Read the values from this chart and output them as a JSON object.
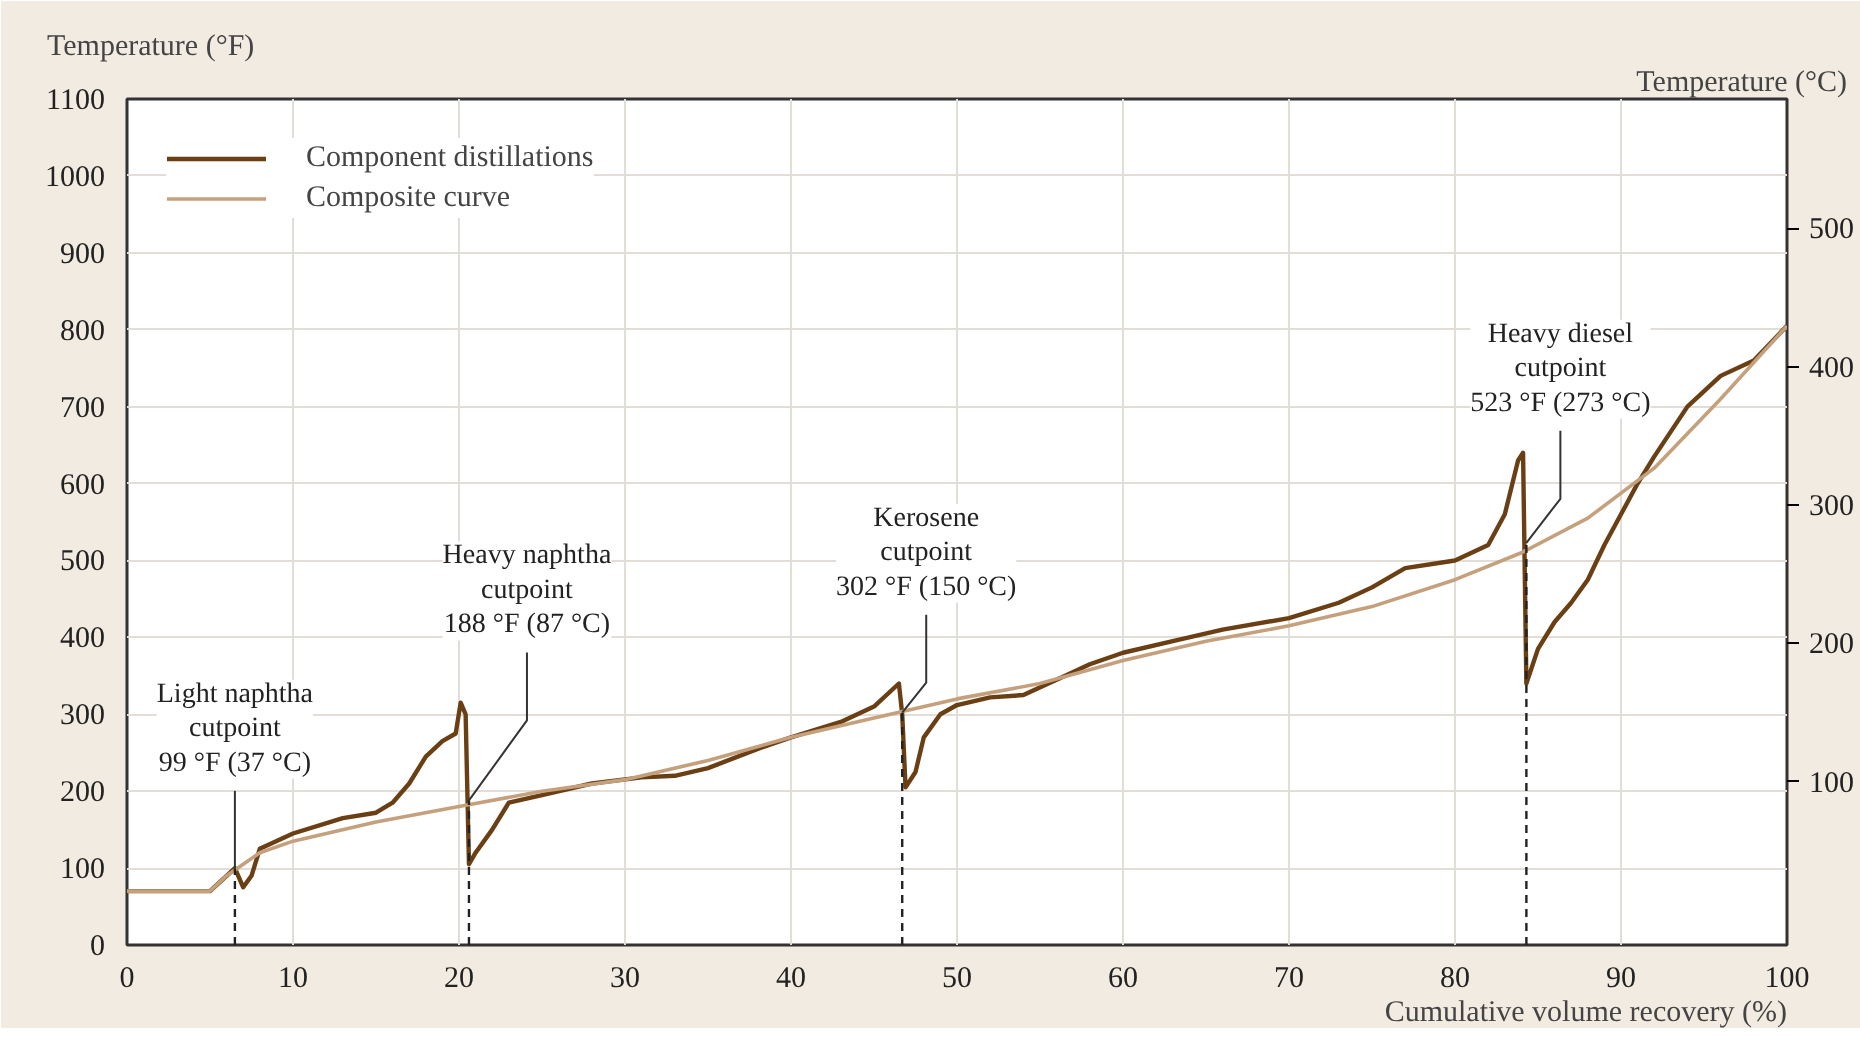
{
  "chart_data": {
    "type": "line",
    "xlabel": "Cumulative volume recovery (%)",
    "ylabel": "Temperature (°F)",
    "y2label": "Temperature (°C)",
    "xlim": [
      0,
      100
    ],
    "xticks": [
      0,
      10,
      20,
      30,
      40,
      50,
      60,
      70,
      80,
      90,
      100
    ],
    "ylim": [
      0,
      1100
    ],
    "yticks": [
      0,
      100,
      200,
      300,
      400,
      500,
      600,
      700,
      800,
      900,
      1000,
      1100
    ],
    "y2lim": [
      -17.8,
      593.3
    ],
    "y2ticks": [
      100,
      200,
      300,
      400,
      500
    ],
    "grid": true,
    "legend": "top left",
    "line_style": "solid",
    "series": [
      {
        "name": "Component distillations",
        "color": "#6b3f14",
        "x": [
          0,
          5,
          6,
          6.5,
          7,
          7.5,
          8,
          10,
          13,
          15,
          16,
          17,
          18,
          19,
          19.8,
          20.1,
          20.4,
          20.6,
          21,
          22,
          23,
          25,
          28,
          31,
          33,
          35,
          38,
          40,
          43,
          45,
          46.5,
          46.7,
          46.9,
          47.5,
          48,
          49,
          50,
          52,
          54,
          56,
          58,
          60,
          63,
          66,
          70,
          73,
          75,
          77,
          80,
          82,
          83,
          83.8,
          84.1,
          84.3,
          85,
          86,
          87,
          88,
          89,
          90,
          91,
          92,
          94,
          96,
          98,
          100
        ],
        "values": [
          70,
          70,
          90,
          100,
          75,
          90,
          125,
          145,
          165,
          172,
          185,
          210,
          245,
          265,
          275,
          315,
          300,
          105,
          120,
          150,
          185,
          195,
          210,
          218,
          220,
          230,
          255,
          270,
          290,
          310,
          340,
          300,
          205,
          225,
          270,
          300,
          312,
          322,
          325,
          345,
          365,
          380,
          395,
          410,
          425,
          445,
          465,
          490,
          500,
          520,
          560,
          630,
          640,
          340,
          385,
          420,
          445,
          475,
          520,
          560,
          600,
          635,
          700,
          740,
          760,
          805
        ]
      },
      {
        "name": "Composite curve",
        "color": "#c4a17c",
        "x": [
          0,
          5,
          6,
          7,
          8,
          10,
          15,
          20,
          25,
          30,
          35,
          40,
          45,
          50,
          55,
          60,
          65,
          70,
          75,
          80,
          84,
          88,
          92,
          96,
          100
        ],
        "values": [
          70,
          70,
          90,
          105,
          120,
          135,
          160,
          180,
          200,
          215,
          240,
          270,
          295,
          320,
          340,
          370,
          395,
          415,
          440,
          475,
          510,
          555,
          620,
          710,
          805
        ]
      }
    ],
    "ref_lines": [
      {
        "axis": "x",
        "value": 6.5,
        "color": "#222222",
        "line_style": "dashed"
      },
      {
        "axis": "x",
        "value": 20.6,
        "color": "#222222",
        "line_style": "dashed"
      },
      {
        "axis": "x",
        "value": 46.7,
        "color": "#222222",
        "line_style": "dashed"
      },
      {
        "axis": "x",
        "value": 84.3,
        "color": "#222222",
        "line_style": "dashed"
      }
    ],
    "annotations": [
      {
        "text": "Light naphtha\ncutpoint\n99 °F (37 °C)",
        "x": 6.5,
        "y": 99
      },
      {
        "text": "Heavy naphtha\ncutpoint\n188 °F (87 °C)",
        "x": 20.6,
        "y": 188
      },
      {
        "text": "Kerosene\ncutpoint\n302 °F (150 °C)",
        "x": 46.7,
        "y": 302
      },
      {
        "text": "Heavy diesel\ncutpoint\n523 °F (273 °C)",
        "x": 84.3,
        "y": 523
      }
    ]
  }
}
